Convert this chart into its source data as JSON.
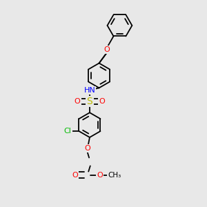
{
  "background_color": "#e8e8e8",
  "bond_color": "#000000",
  "atom_colors": {
    "O": "#ff0000",
    "N": "#0000ff",
    "S": "#bbbb00",
    "Cl": "#00bb00",
    "H": "#009999",
    "C": "#000000"
  },
  "figsize": [
    3.0,
    3.0
  ],
  "dpi": 100,
  "lw": 1.3,
  "ring_r": 0.42,
  "xlim": [
    -1.5,
    2.5
  ],
  "ylim": [
    -3.8,
    3.2
  ]
}
